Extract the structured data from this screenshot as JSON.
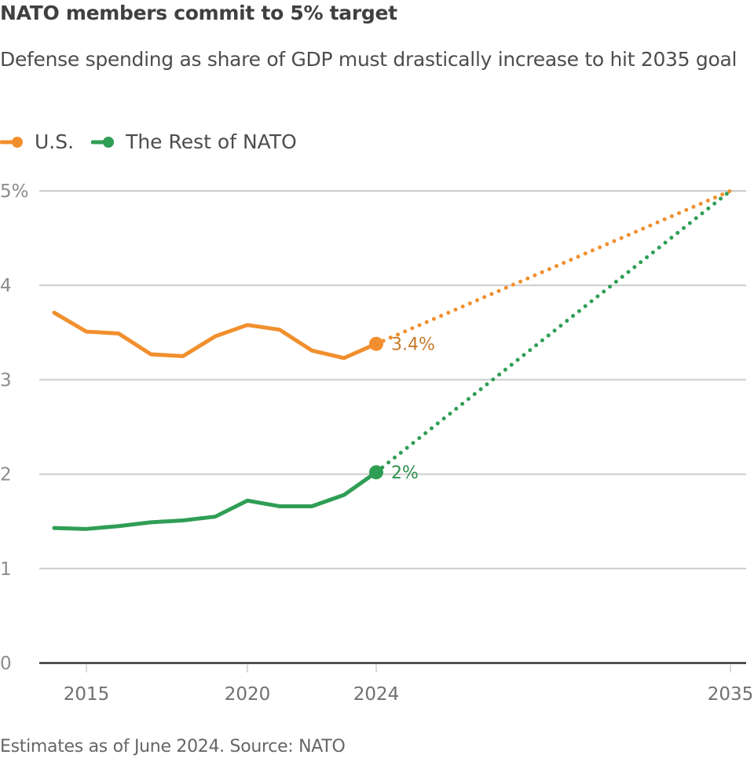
{
  "header": {
    "title": "NATO members commit to 5% target",
    "subtitle": "Defense spending as share of GDP must drastically increase to hit 2035 goal"
  },
  "footer": {
    "source": "Estimates as of June 2024. Source: NATO"
  },
  "chart_data": {
    "type": "line",
    "title": "NATO members commit to 5% target",
    "subtitle": "Defense spending as share of GDP must drastically increase to hit 2035 goal",
    "xlabel": "",
    "ylabel": "",
    "xlim": [
      2014,
      2035
    ],
    "ylim": [
      0,
      5
    ],
    "grid": true,
    "legend_position": "top-left",
    "x_ticks": [
      {
        "value": 2015,
        "label": "2015"
      },
      {
        "value": 2020,
        "label": "2020"
      },
      {
        "value": 2024,
        "label": "2024"
      },
      {
        "value": 2035,
        "label": "2035"
      }
    ],
    "y_ticks": [
      {
        "value": 0,
        "label": "0"
      },
      {
        "value": 1,
        "label": "1"
      },
      {
        "value": 2,
        "label": "2"
      },
      {
        "value": 3,
        "label": "3"
      },
      {
        "value": 4,
        "label": "4"
      },
      {
        "value": 5,
        "label": "5%"
      }
    ],
    "series": [
      {
        "name": "U.S.",
        "color": "#f18f2e",
        "label_color": "#c87a2a",
        "x": [
          2014,
          2015,
          2016,
          2017,
          2018,
          2019,
          2020,
          2021,
          2022,
          2023,
          2024
        ],
        "values": [
          3.71,
          3.51,
          3.49,
          3.27,
          3.25,
          3.46,
          3.58,
          3.53,
          3.31,
          3.23,
          3.38
        ],
        "projection": {
          "x": [
            2024,
            2035
          ],
          "values": [
            3.38,
            5.0
          ]
        },
        "end_label": "3.4%"
      },
      {
        "name": "The Rest of NATO",
        "color": "#2f9e55",
        "label_color": "#2f8f4e",
        "x": [
          2014,
          2015,
          2016,
          2017,
          2018,
          2019,
          2020,
          2021,
          2022,
          2023,
          2024
        ],
        "values": [
          1.43,
          1.42,
          1.45,
          1.49,
          1.51,
          1.55,
          1.72,
          1.66,
          1.66,
          1.78,
          2.02
        ],
        "projection": {
          "x": [
            2024,
            2035
          ],
          "values": [
            2.02,
            5.0
          ]
        },
        "end_label": "2%"
      }
    ],
    "annotations": [
      "3.4%",
      "2%"
    ]
  }
}
